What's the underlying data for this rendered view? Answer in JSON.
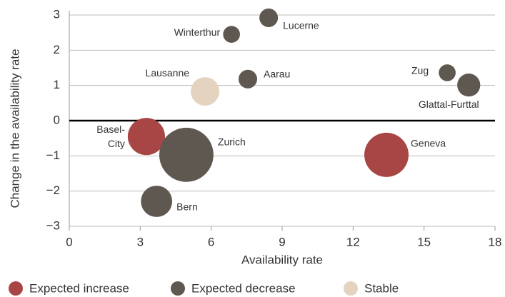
{
  "chart_data": {
    "type": "bubble",
    "x_label": "Availability rate",
    "y_label": "Change in the availability rate",
    "xlim": [
      0,
      18
    ],
    "xticks": [
      0,
      3,
      6,
      9,
      12,
      15,
      18
    ],
    "ylim": [
      -3,
      3
    ],
    "yticks": [
      {
        "value": -3,
        "label": "−3"
      },
      {
        "value": -2,
        "label": "−2"
      },
      {
        "value": -1,
        "label": "−1"
      },
      0,
      1,
      2,
      3
    ],
    "grid": true,
    "legend": "bottom",
    "series": [
      {
        "name": "Expected increase",
        "color": "#a84646",
        "labels": [
          "Basel-City",
          "Geneva"
        ],
        "x": [
          3.26,
          13.41
        ],
        "values": [
          -0.45,
          -0.97
        ],
        "sizes": [
          68,
          96
        ]
      },
      {
        "name": "Expected decrease",
        "color": "#5e5850",
        "labels": [
          "Lucerne",
          "Winterthur",
          "Aarau",
          "Zug",
          "Glattal-Furttal",
          "Zurich",
          "Bern"
        ],
        "x": [
          8.43,
          6.86,
          7.55,
          15.98,
          16.89,
          4.95,
          3.69
        ],
        "values": [
          2.92,
          2.45,
          1.18,
          1.36,
          1.01,
          -0.97,
          -2.29
        ],
        "sizes": [
          17,
          14,
          17,
          14,
          26,
          144,
          48
        ]
      },
      {
        "name": "Stable",
        "color": "#e3d3bf",
        "labels": [
          "Lausanne"
        ],
        "x": [
          5.74
        ],
        "values": [
          0.83
        ],
        "sizes": [
          40
        ]
      }
    ]
  }
}
